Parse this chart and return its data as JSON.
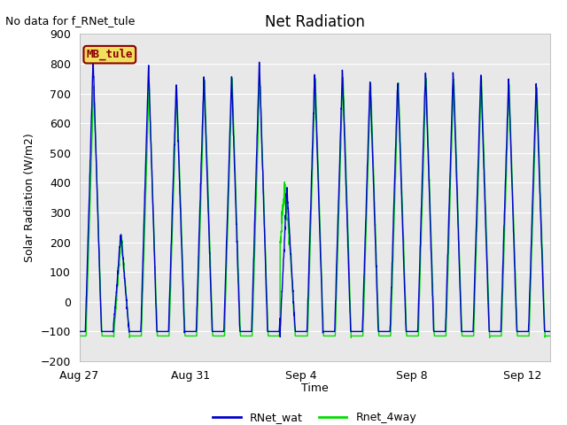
{
  "title": "Net Radiation",
  "no_data_text": "No data for f_RNet_tule",
  "ylabel": "Solar Radiation (W/m2)",
  "xlabel": "Time",
  "ylim": [
    -200,
    900
  ],
  "yticks": [
    -200,
    -100,
    0,
    100,
    200,
    300,
    400,
    500,
    600,
    700,
    800,
    900
  ],
  "xtick_labels": [
    "Aug 27",
    "Aug 31",
    "Sep 4",
    "Sep 8",
    "Sep 12"
  ],
  "xtick_days": [
    0,
    4,
    8,
    12,
    16
  ],
  "legend_label": "MB_tule",
  "line1_label": "RNet_wat",
  "line2_label": "Rnet_4way",
  "line1_color": "#0000cc",
  "line2_color": "#00dd00",
  "fig_bg_color": "#ffffff",
  "plot_bg_color": "#e8e8e8",
  "grid_color": "#ffffff",
  "n_days": 17,
  "pts_per_day": 144,
  "peak_wat": [
    820,
    230,
    800,
    740,
    760,
    760,
    810,
    380,
    770,
    780,
    750,
    750,
    780,
    780,
    770,
    750,
    740
  ],
  "peak_4way": [
    730,
    220,
    730,
    720,
    750,
    750,
    760,
    350,
    760,
    770,
    740,
    740,
    760,
    760,
    760,
    735,
    730
  ],
  "night_wat": [
    -100,
    -100,
    -100,
    -100,
    -100,
    -100,
    -100,
    -100,
    -100,
    -100,
    -100,
    -100,
    -100,
    -100,
    -100,
    -100,
    -100
  ],
  "night_4way": [
    -115,
    -115,
    -115,
    -115,
    -115,
    -115,
    -115,
    -115,
    -115,
    -115,
    -115,
    -115,
    -115,
    -115,
    -115,
    -115,
    -115
  ],
  "mb_box_color": "#f0e060",
  "mb_edge_color": "#8b0000",
  "mb_text_color": "#8b0000"
}
